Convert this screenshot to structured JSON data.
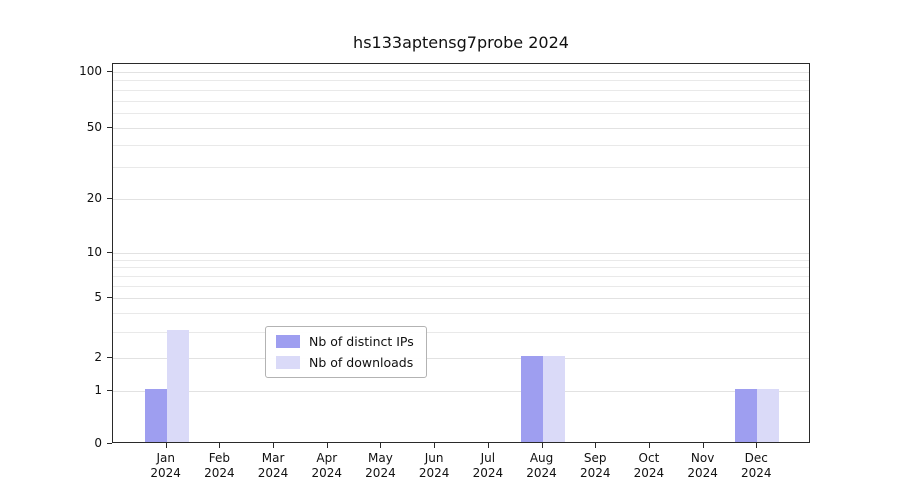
{
  "chart_data": {
    "type": "bar",
    "title": "hs133aptensg7probe 2024",
    "year": "2024",
    "months": [
      "Jan",
      "Feb",
      "Mar",
      "Apr",
      "May",
      "Jun",
      "Jul",
      "Aug",
      "Sep",
      "Oct",
      "Nov",
      "Dec"
    ],
    "series": [
      {
        "name": "Nb of distinct IPs",
        "color": "#9e9ef0",
        "values": [
          1,
          0,
          0,
          0,
          0,
          0,
          0,
          2,
          0,
          0,
          0,
          1
        ]
      },
      {
        "name": "Nb of downloads",
        "color": "#dadaf8",
        "values": [
          3,
          0,
          0,
          0,
          0,
          0,
          0,
          2,
          0,
          0,
          0,
          1
        ]
      }
    ],
    "yticks": [
      0,
      1,
      2,
      5,
      10,
      20,
      50,
      100
    ],
    "minor_gridlines": [
      3,
      4,
      6,
      7,
      8,
      9,
      30,
      40,
      60,
      70,
      80,
      90
    ],
    "ylim": [
      0,
      100
    ],
    "yscale": "log-like (linear between 0 and 1)",
    "y_scale_anchors": {
      "values": [
        0,
        1,
        2,
        5,
        10,
        20,
        50,
        100
      ],
      "fractions": [
        0,
        0.14,
        0.226,
        0.384,
        0.503,
        0.645,
        0.832,
        0.979
      ]
    },
    "grid": "horizontal",
    "legend_position": "lower center inside plot"
  }
}
